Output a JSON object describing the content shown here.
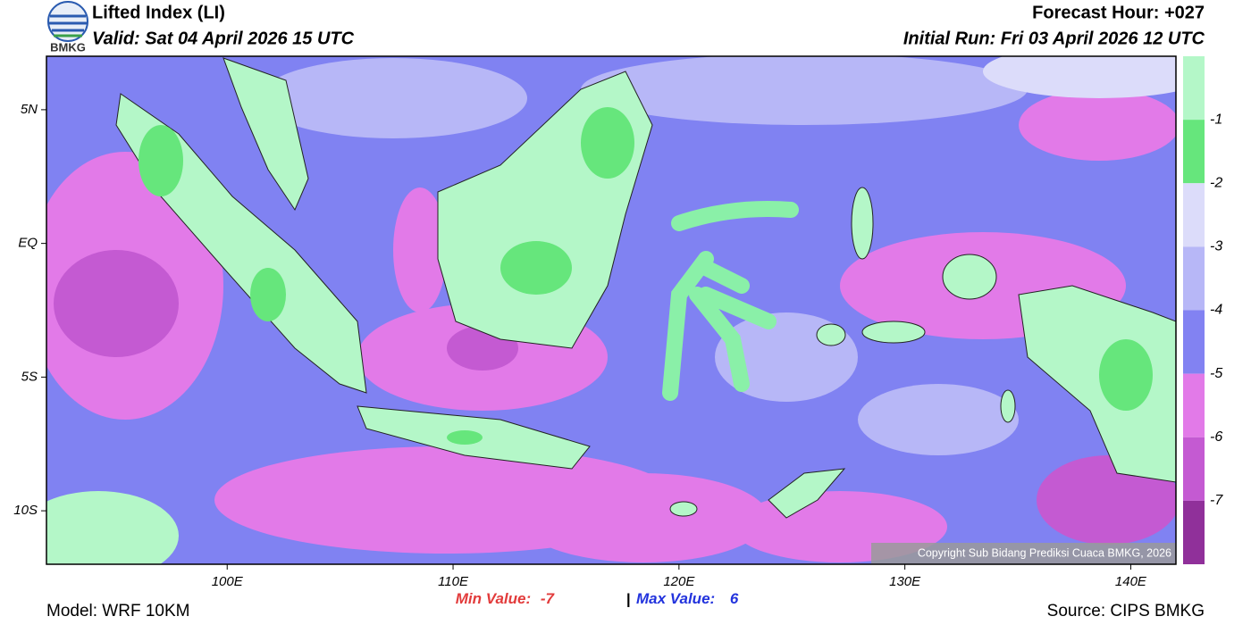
{
  "header": {
    "logo_text": "BMKG",
    "title": "Lifted Index (LI)",
    "valid": "Valid: Sat 04 April 2026 15 UTC",
    "forecast_hour": "Forecast Hour: +027",
    "initial_run": "Initial Run: Fri 03 April 2026 12 UTC"
  },
  "map": {
    "lon_range": [
      92,
      142
    ],
    "lat_range": [
      7,
      -12
    ],
    "lat_ticks": [
      {
        "value": 5,
        "label": "5N"
      },
      {
        "value": 0,
        "label": "EQ"
      },
      {
        "value": -5,
        "label": "5S"
      },
      {
        "value": -10,
        "label": "10S"
      }
    ],
    "lon_ticks": [
      {
        "value": 100,
        "label": "100E"
      },
      {
        "value": 110,
        "label": "110E"
      },
      {
        "value": 120,
        "label": "120E"
      },
      {
        "value": 130,
        "label": "130E"
      },
      {
        "value": 140,
        "label": "140E"
      }
    ],
    "copyright": "Copyright Sub Bidang Prediksi Cuaca BMKG, 2026"
  },
  "colorbar": {
    "colors": [
      "#b4f7c8",
      "#66e67c",
      "#dcdcfa",
      "#b7b7f7",
      "#8282f2",
      "#e27ae8",
      "#c45ad2",
      "#90309a"
    ],
    "levels": [
      -1,
      -2,
      -3,
      -4,
      -5,
      -6,
      -7
    ]
  },
  "stats": {
    "min_label": "Min Value:",
    "min_value": -7,
    "separator": "|",
    "max_label": "Max Value:",
    "max_value": 6
  },
  "footer": {
    "model": "Model: WRF 10KM",
    "source": "Source: CIPS BMKG"
  }
}
